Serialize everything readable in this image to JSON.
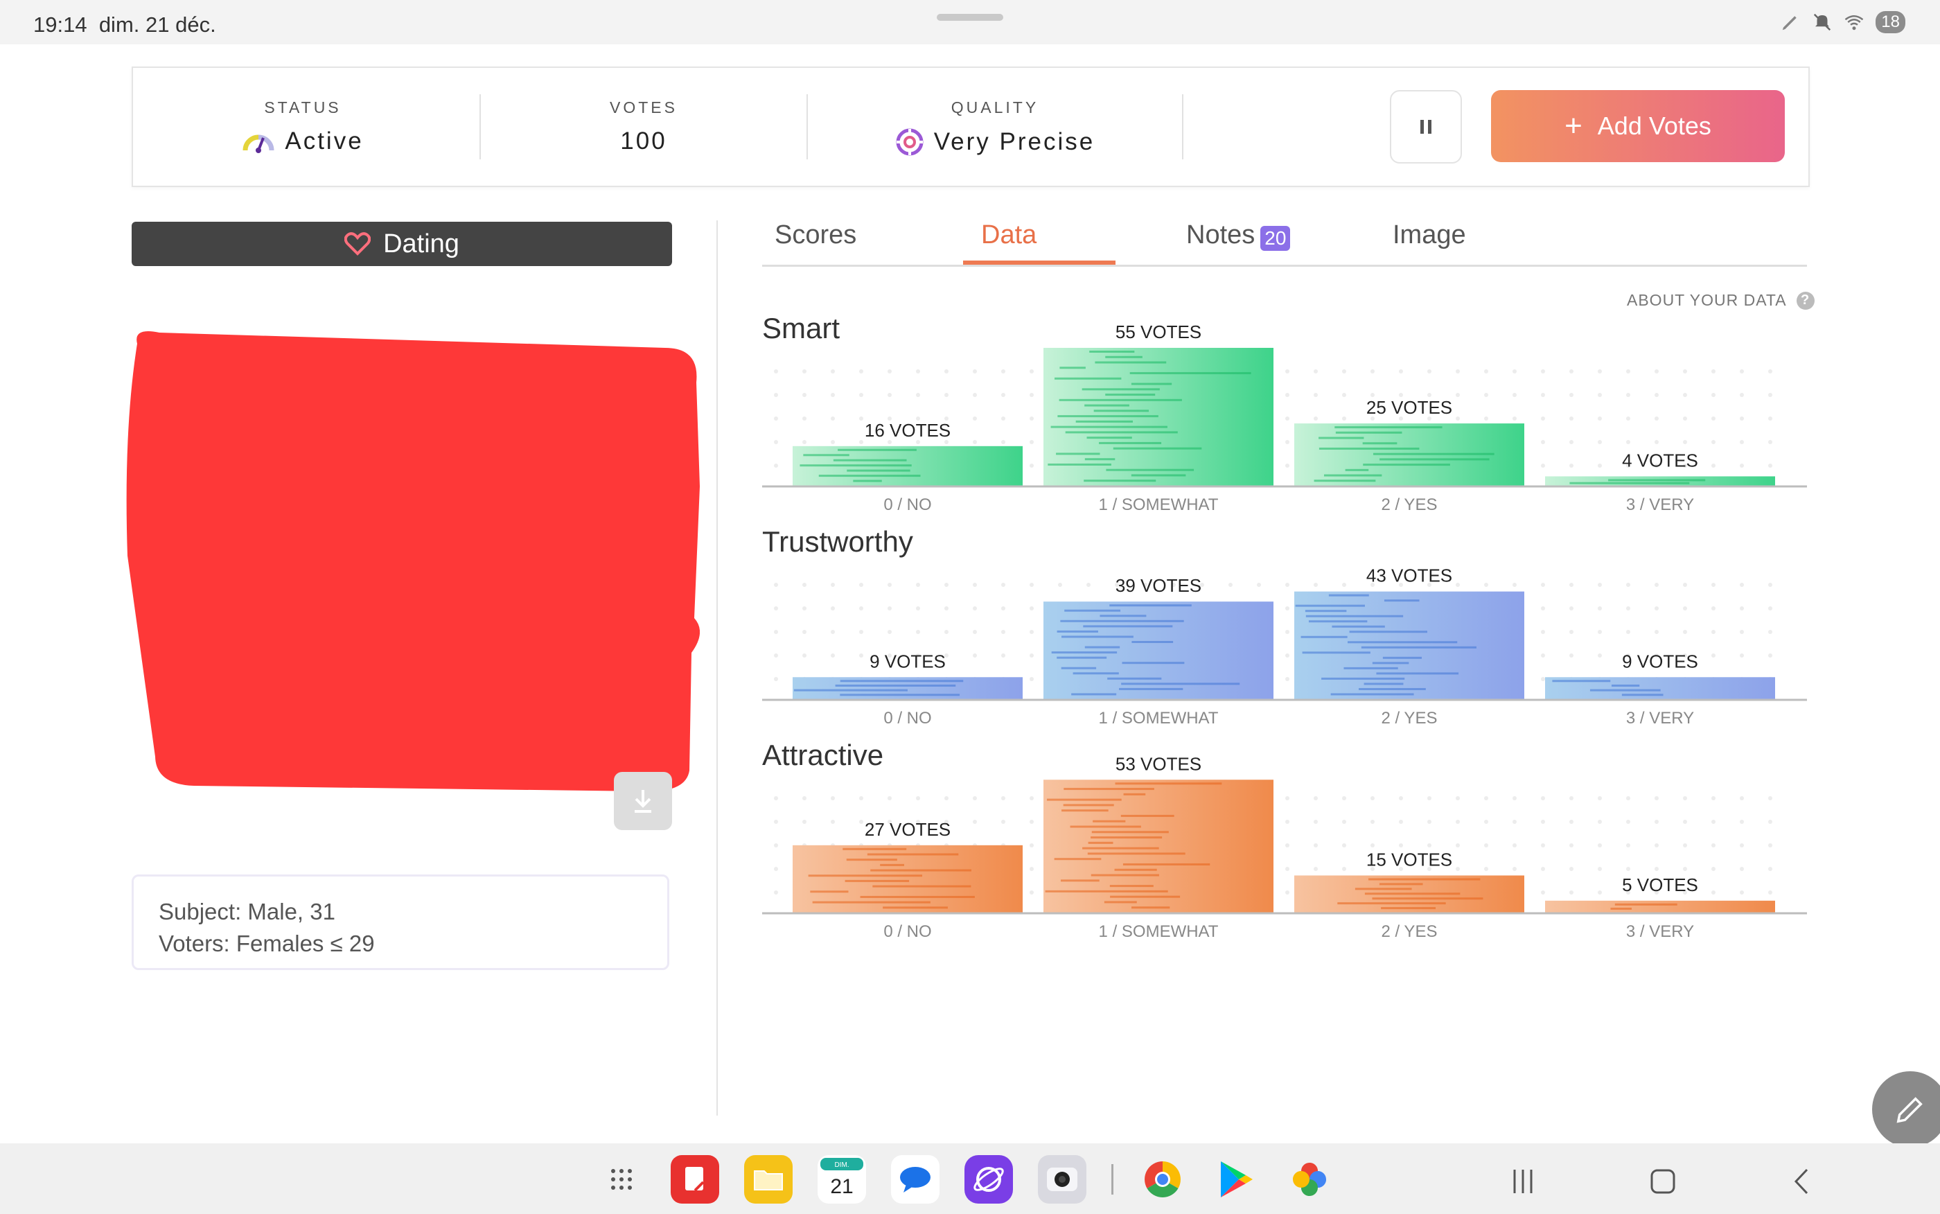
{
  "status_bar": {
    "time": "19:14",
    "date": "dim. 21 déc.",
    "battery": "18"
  },
  "summary": {
    "status": {
      "label": "STATUS",
      "value": "Active"
    },
    "votes": {
      "label": "VOTES",
      "value": "100"
    },
    "quality": {
      "label": "QUALITY",
      "value": "Very Precise"
    },
    "add_votes_label": "Add Votes"
  },
  "category": {
    "label": "Dating"
  },
  "subject": {
    "line1": "Subject: Male, 31",
    "line2": "Voters: Females ≤ 29"
  },
  "tabs": [
    {
      "label": "Scores"
    },
    {
      "label": "Data",
      "active": true
    },
    {
      "label": "Notes",
      "badge": "20"
    },
    {
      "label": "Image"
    }
  ],
  "about_link": "ABOUT YOUR DATA",
  "colors": {
    "accent": "#ee7a52",
    "smart": "#3ecf84",
    "trustworthy": "#7f9fe6",
    "attractive": "#f08a4b",
    "badge": "#8b6fe8"
  },
  "chart_data": [
    {
      "type": "bar",
      "title": "Smart",
      "categories": [
        "0 / NO",
        "1 / SOMEWHAT",
        "2 / YES",
        "3 / VERY"
      ],
      "values": [
        16,
        55,
        25,
        4
      ],
      "value_suffix": "VOTES",
      "ylim": [
        0,
        55
      ]
    },
    {
      "type": "bar",
      "title": "Trustworthy",
      "categories": [
        "0 / NO",
        "1 / SOMEWHAT",
        "2 / YES",
        "3 / VERY"
      ],
      "values": [
        9,
        39,
        43,
        9
      ],
      "value_suffix": "VOTES",
      "ylim": [
        0,
        55
      ]
    },
    {
      "type": "bar",
      "title": "Attractive",
      "categories": [
        "0 / NO",
        "1 / SOMEWHAT",
        "2 / YES",
        "3 / VERY"
      ],
      "values": [
        27,
        53,
        15,
        5
      ],
      "value_suffix": "VOTES",
      "ylim": [
        0,
        55
      ]
    }
  ],
  "dock_apps": [
    "app-drawer-icon",
    "notes-app-icon",
    "files-app-icon",
    "calendar-app-icon",
    "messages-app-icon",
    "internet-app-icon",
    "camera-app-icon",
    "chrome-app-icon",
    "play-store-app-icon",
    "photos-app-icon"
  ],
  "calendar_icon": {
    "day_label": "DIM.",
    "day_number": "21"
  }
}
